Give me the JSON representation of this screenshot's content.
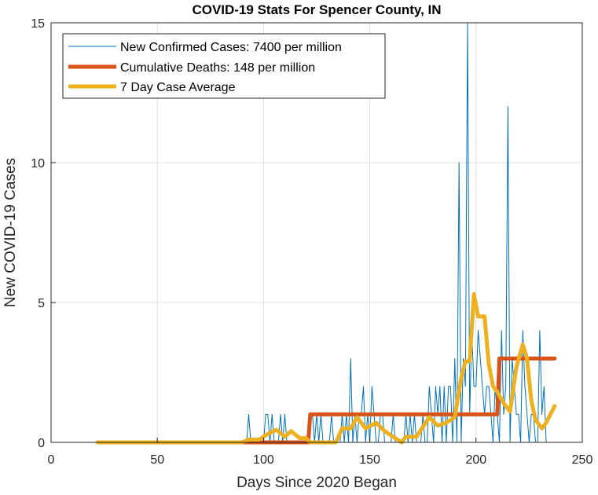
{
  "chart_data": {
    "type": "line",
    "title": "COVID-19 Stats For Spencer County, IN",
    "xlabel": "Days Since 2020 Began",
    "ylabel": "New COVID-19 Cases",
    "xlim": [
      0,
      250
    ],
    "ylim": [
      0,
      15
    ],
    "xticks": [
      0,
      50,
      100,
      150,
      200,
      250
    ],
    "yticks": [
      0,
      5,
      10,
      15
    ],
    "grid": true,
    "legend_position": "top-left",
    "series": [
      {
        "name": "New Confirmed Cases: 7400 per million",
        "color": "#0072BD",
        "x_start": 22,
        "values": [
          0,
          0,
          0,
          0,
          0,
          0,
          0,
          0,
          0,
          0,
          0,
          0,
          0,
          0,
          0,
          0,
          0,
          0,
          0,
          0,
          0,
          0,
          0,
          0,
          0,
          0,
          0,
          0,
          0,
          0,
          0,
          0,
          0,
          0,
          0,
          0,
          0,
          0,
          0,
          0,
          0,
          0,
          0,
          0,
          0,
          0,
          0,
          0,
          0,
          0,
          0,
          0,
          0,
          0,
          0,
          0,
          0,
          0,
          0,
          0,
          0,
          0,
          0,
          0,
          0,
          0,
          0,
          0,
          0,
          0,
          0,
          1,
          0,
          0,
          0,
          0,
          0,
          0,
          0,
          1,
          1,
          0,
          1,
          0,
          0,
          0,
          1,
          0,
          1,
          0,
          0,
          0,
          0,
          0,
          0,
          0,
          0,
          0,
          0,
          0,
          1,
          1,
          0,
          1,
          0,
          1,
          0,
          0,
          0,
          0,
          1,
          0,
          0,
          0,
          0,
          1,
          0,
          1,
          0,
          3,
          0,
          1,
          0,
          1,
          1,
          2,
          0,
          1,
          0,
          2,
          1,
          0,
          0,
          1,
          1,
          0,
          0,
          0,
          0,
          1,
          0,
          0,
          0,
          0,
          0,
          1,
          0,
          1,
          0,
          1,
          0,
          0,
          0,
          1,
          0,
          0,
          2,
          1,
          0,
          2,
          1,
          2,
          0,
          2,
          0,
          2,
          2,
          0,
          3,
          0,
          10,
          0,
          3,
          2,
          15,
          1,
          4,
          2,
          2,
          4,
          3,
          2,
          1,
          2,
          2,
          1,
          0,
          2,
          1,
          0,
          4,
          1,
          2,
          12,
          0,
          3,
          2,
          1,
          1,
          0,
          4,
          2,
          1,
          0,
          1,
          1,
          0,
          0,
          4,
          1,
          2,
          0
        ]
      },
      {
        "name": "Cumulative Deaths: 148 per million",
        "color": "#D95319",
        "points": [
          [
            22,
            0
          ],
          [
            121,
            0
          ],
          [
            122,
            1
          ],
          [
            210,
            1
          ],
          [
            211,
            3
          ],
          [
            237,
            3
          ]
        ]
      },
      {
        "name": "7 Day Case Average",
        "color": "#EDB120",
        "points": [
          [
            22,
            0
          ],
          [
            90,
            0
          ],
          [
            93,
            0.1
          ],
          [
            98,
            0.1
          ],
          [
            102,
            0.3
          ],
          [
            106,
            0.45
          ],
          [
            110,
            0.2
          ],
          [
            113,
            0.4
          ],
          [
            117,
            0.15
          ],
          [
            120,
            0.15
          ],
          [
            122,
            0
          ],
          [
            134,
            0
          ],
          [
            137,
            0.5
          ],
          [
            141,
            0.5
          ],
          [
            144,
            0.9
          ],
          [
            148,
            0.5
          ],
          [
            153,
            0.7
          ],
          [
            157,
            0.4
          ],
          [
            161,
            0.2
          ],
          [
            165,
            0
          ],
          [
            167,
            0.2
          ],
          [
            172,
            0.2
          ],
          [
            175,
            0.55
          ],
          [
            178,
            0.9
          ],
          [
            182,
            0.6
          ],
          [
            186,
            0.7
          ],
          [
            190,
            0.9
          ],
          [
            193,
            2.3
          ],
          [
            195,
            2.9
          ],
          [
            197,
            2.9
          ],
          [
            199,
            5.3
          ],
          [
            201,
            4.5
          ],
          [
            204,
            4.5
          ],
          [
            206,
            2.8
          ],
          [
            208,
            2.0
          ],
          [
            210,
            1.8
          ],
          [
            213,
            1.4
          ],
          [
            216,
            1.1
          ],
          [
            219,
            2.7
          ],
          [
            222,
            3.5
          ],
          [
            224,
            3.0
          ],
          [
            226,
            1.5
          ],
          [
            228,
            0.8
          ],
          [
            231,
            0.5
          ],
          [
            233,
            0.7
          ],
          [
            235,
            1.0
          ],
          [
            237,
            1.3
          ]
        ]
      }
    ]
  }
}
